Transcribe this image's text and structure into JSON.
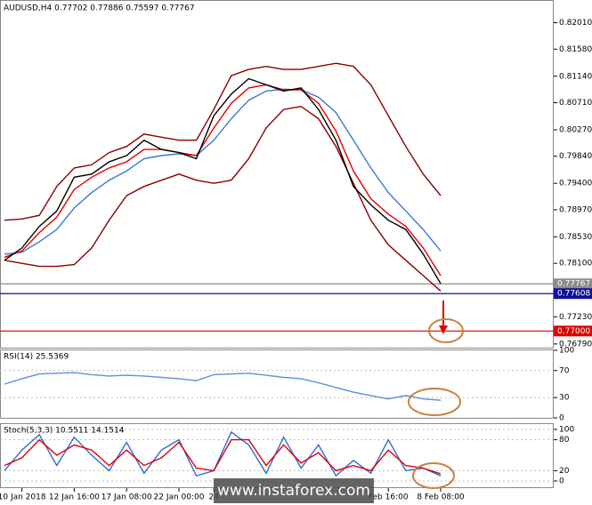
{
  "chart_data": [
    {
      "type": "line",
      "title": "AUDUSD,H4  0.77702 0.77886 0.75597 0.77767",
      "ylim": [
        0.7673,
        0.8235
      ],
      "yticks": [
        {
          "value": 0.8201,
          "label": "0.82010"
        },
        {
          "value": 0.8158,
          "label": "0.81580"
        },
        {
          "value": 0.8114,
          "label": "0.81140"
        },
        {
          "value": 0.8071,
          "label": "0.80710"
        },
        {
          "value": 0.8027,
          "label": "0.80270"
        },
        {
          "value": 0.7984,
          "label": "0.79840"
        },
        {
          "value": 0.794,
          "label": "0.79400"
        },
        {
          "value": 0.7897,
          "label": "0.78970"
        },
        {
          "value": 0.7853,
          "label": "0.78530"
        },
        {
          "value": 0.781,
          "label": "0.78100"
        },
        {
          "value": 0.7723,
          "label": "0.77230"
        },
        {
          "value": 0.7679,
          "label": "0.76790"
        }
      ],
      "levels": [
        {
          "value": 0.77767,
          "color": "#8c8c8c"
        },
        {
          "value": 0.77608,
          "color": "#10109a"
        },
        {
          "value": 0.77,
          "label": "0.77000",
          "color": "#e00000"
        }
      ],
      "series": [
        {
          "color": "#8b0000",
          "values": [
            0.788,
            0.7882,
            0.7888,
            0.7935,
            0.7965,
            0.797,
            0.799,
            0.8,
            0.802,
            0.8015,
            0.801,
            0.801,
            0.806,
            0.8115,
            0.8125,
            0.813,
            0.8125,
            0.8125,
            0.813,
            0.8135,
            0.813,
            0.81,
            0.805,
            0.8,
            0.7955,
            0.792
          ]
        },
        {
          "color": "#8b0000",
          "values": [
            0.7815,
            0.781,
            0.7805,
            0.7805,
            0.7808,
            0.7835,
            0.788,
            0.792,
            0.7935,
            0.7945,
            0.7955,
            0.7945,
            0.794,
            0.7945,
            0.798,
            0.803,
            0.806,
            0.8065,
            0.8045,
            0.8,
            0.794,
            0.788,
            0.784,
            0.7815,
            0.779,
            0.7765
          ]
        },
        {
          "color": "#3a78d8",
          "values": [
            0.7825,
            0.7828,
            0.7845,
            0.7865,
            0.79,
            0.7925,
            0.7945,
            0.796,
            0.798,
            0.7985,
            0.7988,
            0.7985,
            0.801,
            0.8045,
            0.8075,
            0.809,
            0.8093,
            0.8092,
            0.808,
            0.8055,
            0.801,
            0.7965,
            0.7925,
            0.7895,
            0.7865,
            0.783
          ]
        },
        {
          "color": "#e00000",
          "values": [
            0.782,
            0.783,
            0.786,
            0.7885,
            0.793,
            0.795,
            0.7965,
            0.7975,
            0.7995,
            0.7995,
            0.799,
            0.7985,
            0.803,
            0.807,
            0.8095,
            0.81,
            0.8092,
            0.8092,
            0.807,
            0.8025,
            0.796,
            0.7915,
            0.789,
            0.787,
            0.7835,
            0.779
          ]
        },
        {
          "color": "#000000",
          "values": [
            0.7815,
            0.7835,
            0.787,
            0.7895,
            0.795,
            0.7955,
            0.7975,
            0.7985,
            0.801,
            0.7995,
            0.799,
            0.798,
            0.805,
            0.8085,
            0.811,
            0.81,
            0.809,
            0.8095,
            0.806,
            0.801,
            0.7935,
            0.7905,
            0.788,
            0.7865,
            0.7825,
            0.7777
          ]
        }
      ]
    },
    {
      "type": "line",
      "title": "RSI(14) 25.5369",
      "ylim": [
        0,
        100
      ],
      "yticks": [
        100,
        70,
        30,
        0
      ],
      "series": [
        {
          "color": "#5b8fd9",
          "values": [
            50,
            58,
            65,
            66,
            67,
            64,
            62,
            63,
            62,
            60,
            58,
            55,
            64,
            65,
            66,
            63,
            60,
            58,
            52,
            45,
            38,
            33,
            28,
            33,
            28,
            26
          ]
        }
      ]
    },
    {
      "type": "line",
      "title": "Stoch(5,3,3) 10.5511 14.1514",
      "ylim": [
        0,
        100
      ],
      "yticks": [
        100,
        80,
        20,
        0
      ],
      "categories": [
        null,
        "10 Jan 2018",
        null,
        null,
        "12 Jan 16:00",
        null,
        null,
        "17 Jan 08:00",
        null,
        null,
        "22 Jan 00:00",
        null,
        "24",
        null,
        null,
        null,
        null,
        null,
        null,
        null,
        null,
        null,
        "Feb 16:00",
        null,
        null,
        "8 Feb 08:00"
      ],
      "series": [
        {
          "color": "#2f6bd6",
          "values": [
            20,
            60,
            90,
            30,
            85,
            50,
            20,
            75,
            15,
            60,
            80,
            10,
            20,
            95,
            70,
            15,
            85,
            25,
            70,
            10,
            40,
            15,
            80,
            20,
            25,
            10
          ]
        },
        {
          "color": "#e00000",
          "values": [
            30,
            45,
            80,
            50,
            70,
            60,
            30,
            60,
            30,
            45,
            75,
            25,
            20,
            80,
            80,
            30,
            70,
            35,
            55,
            20,
            30,
            20,
            60,
            30,
            25,
            14
          ]
        }
      ]
    }
  ],
  "watermark": "www.instaforex.com"
}
